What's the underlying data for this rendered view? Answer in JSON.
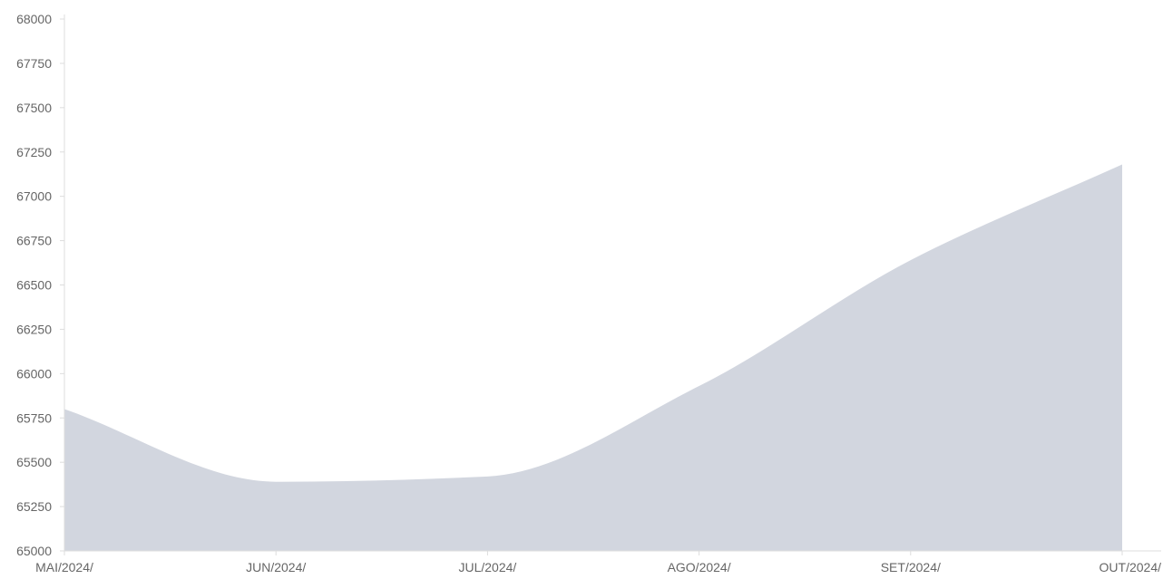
{
  "chart_data": {
    "type": "area",
    "categories": [
      "MAI/2024/",
      "JUN/2024/",
      "JUL/2024/",
      "AGO/2024/",
      "SET/2024/",
      "OUT/2024/"
    ],
    "values": [
      65800,
      65390,
      65420,
      65930,
      66640,
      67180
    ],
    "ylim": [
      65000,
      68000
    ],
    "yticks": [
      65000,
      65250,
      65500,
      65750,
      66000,
      66250,
      66500,
      66750,
      67000,
      67250,
      67500,
      67750,
      68000
    ],
    "grid": false,
    "colors": {
      "fill": "#d2d6df",
      "axis": "#dddddd",
      "tick_text": "#666666"
    }
  }
}
